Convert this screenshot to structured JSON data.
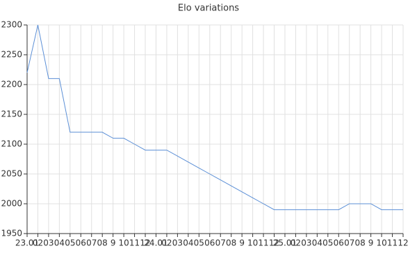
{
  "chart_data": {
    "type": "line",
    "title": "Elo variations",
    "categories": [
      "23.01",
      "02",
      "03",
      "04",
      "05",
      "06",
      "07",
      "08",
      "9",
      "10",
      "11",
      "12",
      "24.01",
      "02",
      "03",
      "04",
      "05",
      "06",
      "07",
      "08",
      "9",
      "10",
      "11",
      "12",
      "25.01",
      "02",
      "03",
      "04",
      "05",
      "06",
      "07",
      "08",
      "9",
      "10",
      "11",
      "12"
    ],
    "series": [
      {
        "name": "Elo",
        "color": "#5b8fd6",
        "values": [
          2220,
          2300,
          2210,
          2210,
          2120,
          2120,
          2120,
          2120,
          2110,
          2110,
          2100,
          2090,
          2090,
          2090,
          2080,
          2070,
          2060,
          2050,
          2040,
          2030,
          2020,
          2010,
          2000,
          1990,
          1990,
          1990,
          1990,
          1990,
          1990,
          1990,
          2000,
          2000,
          2000,
          1990,
          1990,
          1990
        ]
      }
    ],
    "ylim": [
      1950,
      2300
    ],
    "yticks": [
      1950,
      2000,
      2050,
      2100,
      2150,
      2200,
      2250,
      2300
    ],
    "grid": true
  }
}
